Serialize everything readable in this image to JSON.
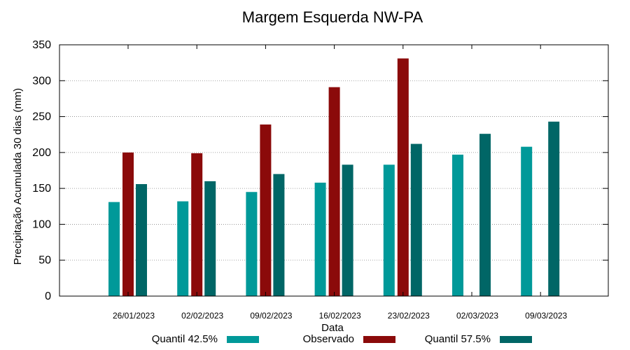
{
  "chart_data": {
    "type": "bar",
    "title": "Margem Esquerda NW-PA",
    "xlabel": "Data",
    "ylabel": "Precipitação Acumulada 30 dias (mm)",
    "ylim": [
      0,
      350
    ],
    "yticks": [
      0,
      50,
      100,
      150,
      200,
      250,
      300,
      350
    ],
    "grid": true,
    "legend_position": "bottom",
    "categories": [
      "26/01/2023",
      "02/02/2023",
      "09/02/2023",
      "16/02/2023",
      "23/02/2023",
      "02/03/2023",
      "09/03/2023"
    ],
    "series": [
      {
        "name": "Quantil 42.5%",
        "color": "#009999",
        "values": [
          131,
          132,
          145,
          158,
          183,
          197,
          208
        ]
      },
      {
        "name": "Observado",
        "color": "#8b0a0a",
        "values": [
          200,
          199,
          239,
          291,
          331,
          null,
          null
        ]
      },
      {
        "name": "Quantil 57.5%",
        "color": "#006666",
        "values": [
          156,
          160,
          170,
          183,
          212,
          226,
          243
        ]
      }
    ]
  }
}
